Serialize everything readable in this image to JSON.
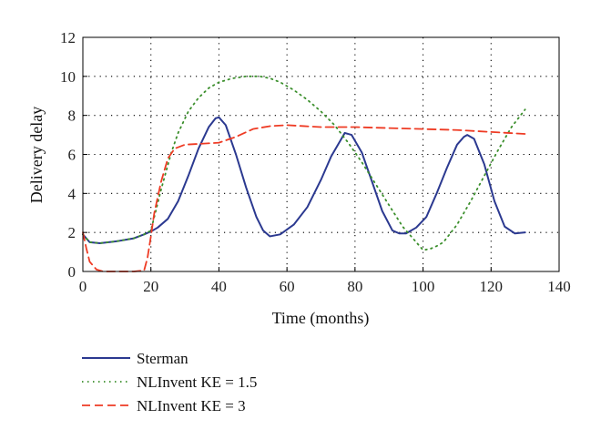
{
  "chart_data": {
    "type": "line",
    "title": "",
    "xlabel": "Time (months)",
    "ylabel": "Delivery delay",
    "xlim": [
      0,
      140
    ],
    "ylim": [
      0,
      12
    ],
    "xticks": [
      0,
      20,
      40,
      60,
      80,
      100,
      120,
      140
    ],
    "yticks": [
      0,
      2,
      4,
      6,
      8,
      10,
      12
    ],
    "grid": true,
    "legend_position": "below",
    "series": [
      {
        "name": "Sterman",
        "color": "#2b3990",
        "style": "solid",
        "x": [
          0,
          2,
          5,
          10,
          15,
          18,
          20,
          22,
          25,
          28,
          31,
          34,
          37,
          39,
          40,
          42,
          45,
          48,
          51,
          53,
          55,
          58,
          62,
          66,
          70,
          73,
          76,
          77,
          79,
          82,
          85,
          88,
          91,
          93,
          95,
          98,
          101,
          104,
          107,
          110,
          112,
          113,
          115,
          118,
          121,
          124,
          127,
          130
        ],
        "y": [
          1.9,
          1.5,
          1.45,
          1.55,
          1.7,
          1.9,
          2.05,
          2.25,
          2.7,
          3.6,
          4.9,
          6.3,
          7.4,
          7.85,
          7.9,
          7.5,
          6.0,
          4.3,
          2.8,
          2.1,
          1.8,
          1.9,
          2.4,
          3.3,
          4.7,
          5.9,
          6.8,
          7.1,
          7.0,
          6.1,
          4.6,
          3.1,
          2.1,
          1.95,
          1.95,
          2.25,
          2.8,
          4.0,
          5.3,
          6.5,
          6.9,
          7.0,
          6.8,
          5.5,
          3.6,
          2.3,
          1.95,
          2.0
        ]
      },
      {
        "name": "NLInvent KE = 1.5",
        "color": "#3b8f2c",
        "style": "dotted",
        "x": [
          0,
          2,
          5,
          10,
          15,
          18,
          20,
          23,
          26,
          28,
          31,
          34,
          37,
          40,
          44,
          48,
          50,
          52,
          55,
          58,
          62,
          66,
          70,
          74,
          78,
          82,
          86,
          90,
          94,
          98,
          100,
          102,
          104,
          106,
          110,
          114,
          118,
          122,
          126,
          130
        ],
        "y": [
          1.9,
          1.5,
          1.45,
          1.55,
          1.7,
          1.9,
          2.1,
          4.2,
          6.1,
          7.1,
          8.2,
          8.9,
          9.4,
          9.7,
          9.9,
          10.0,
          10.0,
          10.0,
          9.9,
          9.7,
          9.3,
          8.8,
          8.2,
          7.5,
          6.6,
          5.6,
          4.5,
          3.4,
          2.3,
          1.5,
          1.1,
          1.15,
          1.3,
          1.5,
          2.4,
          3.6,
          4.9,
          6.2,
          7.4,
          8.3
        ]
      },
      {
        "name": "NLInvent KE = 3",
        "color": "#ee3b24",
        "style": "dashed",
        "x": [
          0,
          1,
          2,
          4,
          6,
          10,
          15,
          18,
          19,
          20,
          21,
          23,
          25,
          27,
          30,
          35,
          40,
          45,
          50,
          55,
          60,
          65,
          70,
          80,
          90,
          100,
          110,
          120,
          130
        ],
        "y": [
          2.0,
          1.2,
          0.5,
          0.1,
          0.0,
          0.0,
          0.0,
          0.05,
          0.7,
          1.8,
          3.0,
          4.6,
          5.8,
          6.3,
          6.5,
          6.55,
          6.6,
          6.9,
          7.3,
          7.45,
          7.5,
          7.45,
          7.4,
          7.4,
          7.35,
          7.3,
          7.25,
          7.15,
          7.05
        ]
      }
    ]
  }
}
